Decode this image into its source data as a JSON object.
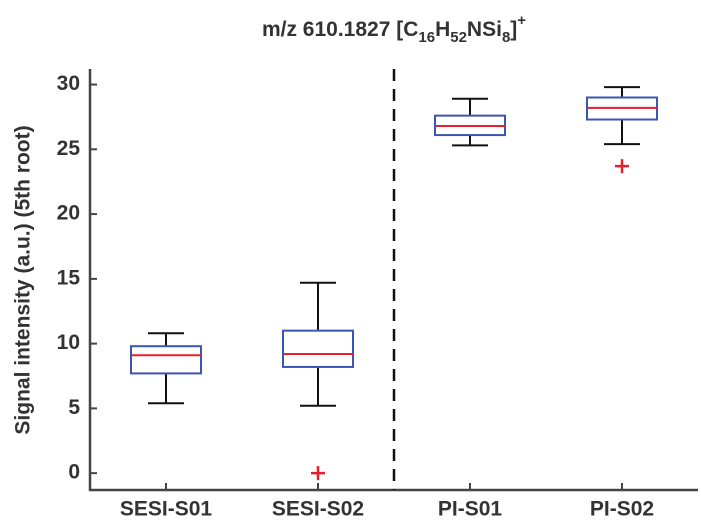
{
  "chart_data": {
    "type": "box",
    "title": [
      {
        "text": "m/z 610.1827 [C"
      },
      {
        "text": "16",
        "script": "sub"
      },
      {
        "text": "H"
      },
      {
        "text": "52",
        "script": "sub"
      },
      {
        "text": "NSi"
      },
      {
        "text": "8",
        "script": "sub"
      },
      {
        "text": "]"
      },
      {
        "text": "+",
        "script": "sup"
      }
    ],
    "ylabel": "Signal intensity (a.u.) (5th root)",
    "categories": [
      "SESI-S01",
      "SESI-S02",
      "PI-S01",
      "PI-S02"
    ],
    "boxes": [
      {
        "whisker_low": 5.4,
        "q1": 7.7,
        "median": 9.1,
        "q3": 9.8,
        "whisker_high": 10.8,
        "outliers": []
      },
      {
        "whisker_low": 5.2,
        "q1": 8.2,
        "median": 9.2,
        "q3": 11.0,
        "whisker_high": 14.7,
        "outliers": [
          0
        ]
      },
      {
        "whisker_low": 25.3,
        "q1": 26.1,
        "median": 26.8,
        "q3": 27.6,
        "whisker_high": 28.9,
        "outliers": []
      },
      {
        "whisker_low": 25.4,
        "q1": 27.3,
        "median": 28.2,
        "q3": 29.0,
        "whisker_high": 29.8,
        "outliers": [
          23.7
        ]
      }
    ],
    "box_color": "#3a55b4",
    "median_color": "#e3202c",
    "whisker_color": "#111111",
    "outlier_color": "#e3202c",
    "ylim": [
      -1.3,
      31.2
    ],
    "yticks": [
      0,
      5,
      10,
      15,
      20,
      25,
      30
    ]
  }
}
